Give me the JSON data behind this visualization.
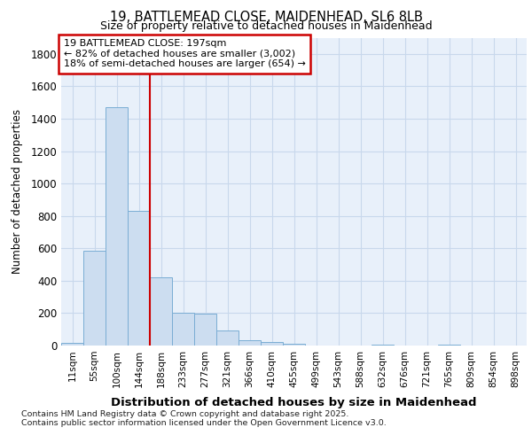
{
  "title_line1": "19, BATTLEMEAD CLOSE, MAIDENHEAD, SL6 8LB",
  "title_line2": "Size of property relative to detached houses in Maidenhead",
  "xlabel": "Distribution of detached houses by size in Maidenhead",
  "ylabel": "Number of detached properties",
  "footer_line1": "Contains HM Land Registry data © Crown copyright and database right 2025.",
  "footer_line2": "Contains public sector information licensed under the Open Government Licence v3.0.",
  "categories": [
    "11sqm",
    "55sqm",
    "100sqm",
    "144sqm",
    "188sqm",
    "233sqm",
    "277sqm",
    "321sqm",
    "366sqm",
    "410sqm",
    "455sqm",
    "499sqm",
    "543sqm",
    "588sqm",
    "632sqm",
    "676sqm",
    "721sqm",
    "765sqm",
    "809sqm",
    "854sqm",
    "898sqm"
  ],
  "values": [
    15,
    585,
    1470,
    830,
    420,
    200,
    195,
    95,
    35,
    20,
    10,
    0,
    0,
    0,
    5,
    0,
    0,
    5,
    0,
    0,
    0
  ],
  "bar_color": "#ccddf0",
  "bar_edge_color": "#7aadd4",
  "bar_edge_width": 0.7,
  "vline_color": "#cc0000",
  "vline_pos": 3.5,
  "annotation_text": "19 BATTLEMEAD CLOSE: 197sqm\n← 82% of detached houses are smaller (3,002)\n18% of semi-detached houses are larger (654) →",
  "annotation_box_edgecolor": "#cc0000",
  "ylim": [
    0,
    1900
  ],
  "yticks": [
    0,
    200,
    400,
    600,
    800,
    1000,
    1200,
    1400,
    1600,
    1800
  ],
  "grid_color": "#c8d8ec",
  "background_color": "#ffffff",
  "plot_bg_color": "#e8f0fa"
}
